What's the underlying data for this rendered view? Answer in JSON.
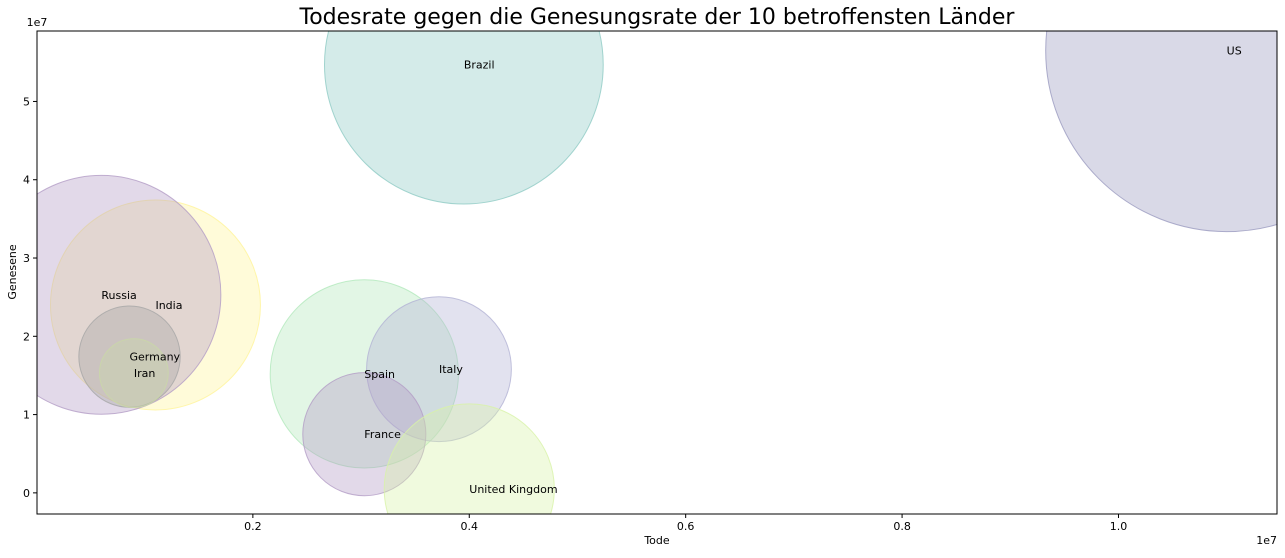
{
  "chart_data": {
    "type": "scatter",
    "title": "Todesrate gegen die Genesungsrate der 10 betroffensten Länder",
    "xlabel": "Tode",
    "ylabel": "Genesene",
    "x_multiplier_label": "1e7",
    "y_multiplier_label": "1e7",
    "x_scale": 10000000,
    "y_scale": 10000000,
    "xlim": [
      0.0005,
      1.1465
    ],
    "ylim": [
      -0.27,
      5.9
    ],
    "x_ticks": [
      {
        "value": 0.2,
        "label": "0.2"
      },
      {
        "value": 0.4,
        "label": "0.4"
      },
      {
        "value": 0.6,
        "label": "0.6"
      },
      {
        "value": 0.8,
        "label": "0.8"
      },
      {
        "value": 1.0,
        "label": "1.0"
      }
    ],
    "y_ticks": [
      {
        "value": 0,
        "label": "0"
      },
      {
        "value": 1,
        "label": "1"
      },
      {
        "value": 2,
        "label": "2"
      },
      {
        "value": 3,
        "label": "3"
      },
      {
        "value": 4,
        "label": "4"
      },
      {
        "value": 5,
        "label": "5"
      }
    ],
    "grid": false,
    "points": [
      {
        "label": "US",
        "x": 1.1,
        "y": 5.65,
        "size": 1.0,
        "color": "#9a9abf"
      },
      {
        "label": "Brazil",
        "x": 0.395,
        "y": 5.47,
        "size": 0.77,
        "color": "#8ecac4"
      },
      {
        "label": "India",
        "x": 0.11,
        "y": 2.4,
        "size": 0.58,
        "color": "#fff49a"
      },
      {
        "label": "Russia",
        "x": 0.06,
        "y": 2.53,
        "size": 0.66,
        "color": "#b39cc6"
      },
      {
        "label": "Spain",
        "x": 0.303,
        "y": 1.52,
        "size": 0.52,
        "color": "#b2e8bb"
      },
      {
        "label": "Italy",
        "x": 0.372,
        "y": 1.58,
        "size": 0.4,
        "color": "#b3b3d4"
      },
      {
        "label": "Germany",
        "x": 0.086,
        "y": 1.74,
        "size": 0.28,
        "color": "#a6a6a6"
      },
      {
        "label": "Iran",
        "x": 0.09,
        "y": 1.53,
        "size": 0.19,
        "color": "#c9d8a8"
      },
      {
        "label": "France",
        "x": 0.303,
        "y": 0.75,
        "size": 0.34,
        "color": "#b39cc6"
      },
      {
        "label": "United Kingdom",
        "x": 0.4,
        "y": 0.05,
        "size": 0.47,
        "color": "#d8f2a8"
      }
    ]
  }
}
